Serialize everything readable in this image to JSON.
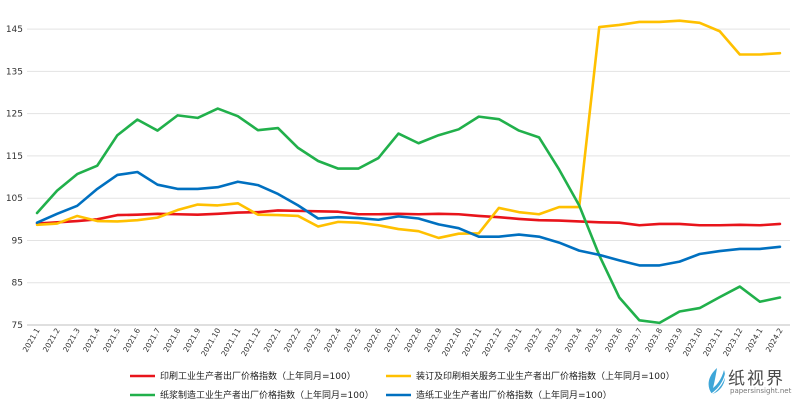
{
  "chart_data": {
    "type": "line",
    "title": "",
    "xlabel": "",
    "ylabel": "",
    "ylim": [
      75,
      150
    ],
    "yticks": [
      75,
      85,
      95,
      105,
      115,
      125,
      135,
      145
    ],
    "grid": "horizontal",
    "legend_position": "bottom",
    "categories": [
      "2021.1",
      "2021.2",
      "2021.3",
      "2021.4",
      "2021.5",
      "2021.6",
      "2021.7",
      "2021.8",
      "2021.9",
      "2021.10",
      "2021.11",
      "2021.12",
      "2022.1",
      "2022.2",
      "2022.3",
      "2022.4",
      "2022.5",
      "2022.6",
      "2022.7",
      "2022.8",
      "2022.9",
      "2022.10",
      "2022.11",
      "2022.12",
      "2023.1",
      "2023.2",
      "2023.3",
      "2023.4",
      "2023.5",
      "2023.6",
      "2023.7",
      "2023.8",
      "2023.9",
      "2023.10",
      "2023.11",
      "2023.12",
      "2024.1",
      "2024.2"
    ],
    "series": [
      {
        "name": "印刷工业生产者出厂价格指数（上年同月=100）",
        "color": "#e8141b",
        "values": [
          99.0,
          99.3,
          99.6,
          100.0,
          101.0,
          101.1,
          101.3,
          101.2,
          101.1,
          101.3,
          101.6,
          101.7,
          102.1,
          102.0,
          101.9,
          101.8,
          101.2,
          101.2,
          101.3,
          101.2,
          101.3,
          101.2,
          100.8,
          100.5,
          100.1,
          99.8,
          99.7,
          99.5,
          99.3,
          99.2,
          98.6,
          98.9,
          98.9,
          98.6,
          98.6,
          98.7,
          98.6,
          98.9
        ]
      },
      {
        "name": "装订及印刷相关服务工业生产者出厂价格指数（上年同月=100）",
        "color": "#ffc000",
        "values": [
          98.7,
          99.0,
          100.8,
          99.6,
          99.5,
          99.8,
          100.4,
          102.2,
          103.5,
          103.3,
          103.8,
          101.1,
          101.0,
          100.8,
          98.3,
          99.4,
          99.2,
          98.6,
          97.7,
          97.2,
          95.6,
          96.6,
          96.7,
          102.7,
          101.7,
          101.2,
          102.9,
          102.9,
          145.5,
          146.0,
          146.7,
          146.7,
          147.0,
          146.5,
          144.5,
          139.0,
          139.0,
          139.3
        ]
      },
      {
        "name": "纸浆制造工业生产者出厂价格指数（上年同月=100）",
        "color": "#21b04b",
        "values": [
          101.5,
          106.8,
          110.7,
          112.7,
          119.9,
          123.6,
          121.0,
          124.6,
          124.0,
          126.2,
          124.4,
          121.1,
          121.6,
          116.9,
          113.8,
          112.0,
          112.0,
          114.5,
          120.3,
          118.0,
          119.9,
          121.3,
          124.3,
          123.7,
          121.0,
          119.4,
          111.8,
          103.3,
          91.5,
          81.5,
          76.1,
          75.5,
          78.2,
          79.0,
          81.6,
          84.1,
          80.5,
          81.5
        ]
      },
      {
        "name": "造纸工业生产者出厂价格指数（上年同月=100）",
        "color": "#0070c0",
        "values": [
          99.2,
          101.3,
          103.2,
          107.2,
          110.5,
          111.2,
          108.2,
          107.2,
          107.2,
          107.6,
          108.9,
          108.1,
          106.0,
          103.3,
          100.2,
          100.5,
          100.3,
          99.9,
          100.7,
          100.2,
          98.8,
          97.9,
          95.9,
          95.9,
          96.4,
          95.9,
          94.5,
          92.6,
          91.6,
          90.3,
          89.1,
          89.1,
          90.0,
          91.8,
          92.5,
          93.0,
          93.0,
          93.5
        ]
      }
    ]
  },
  "watermark": {
    "name_cn": "纸视界",
    "url": "papersinsight.net"
  }
}
